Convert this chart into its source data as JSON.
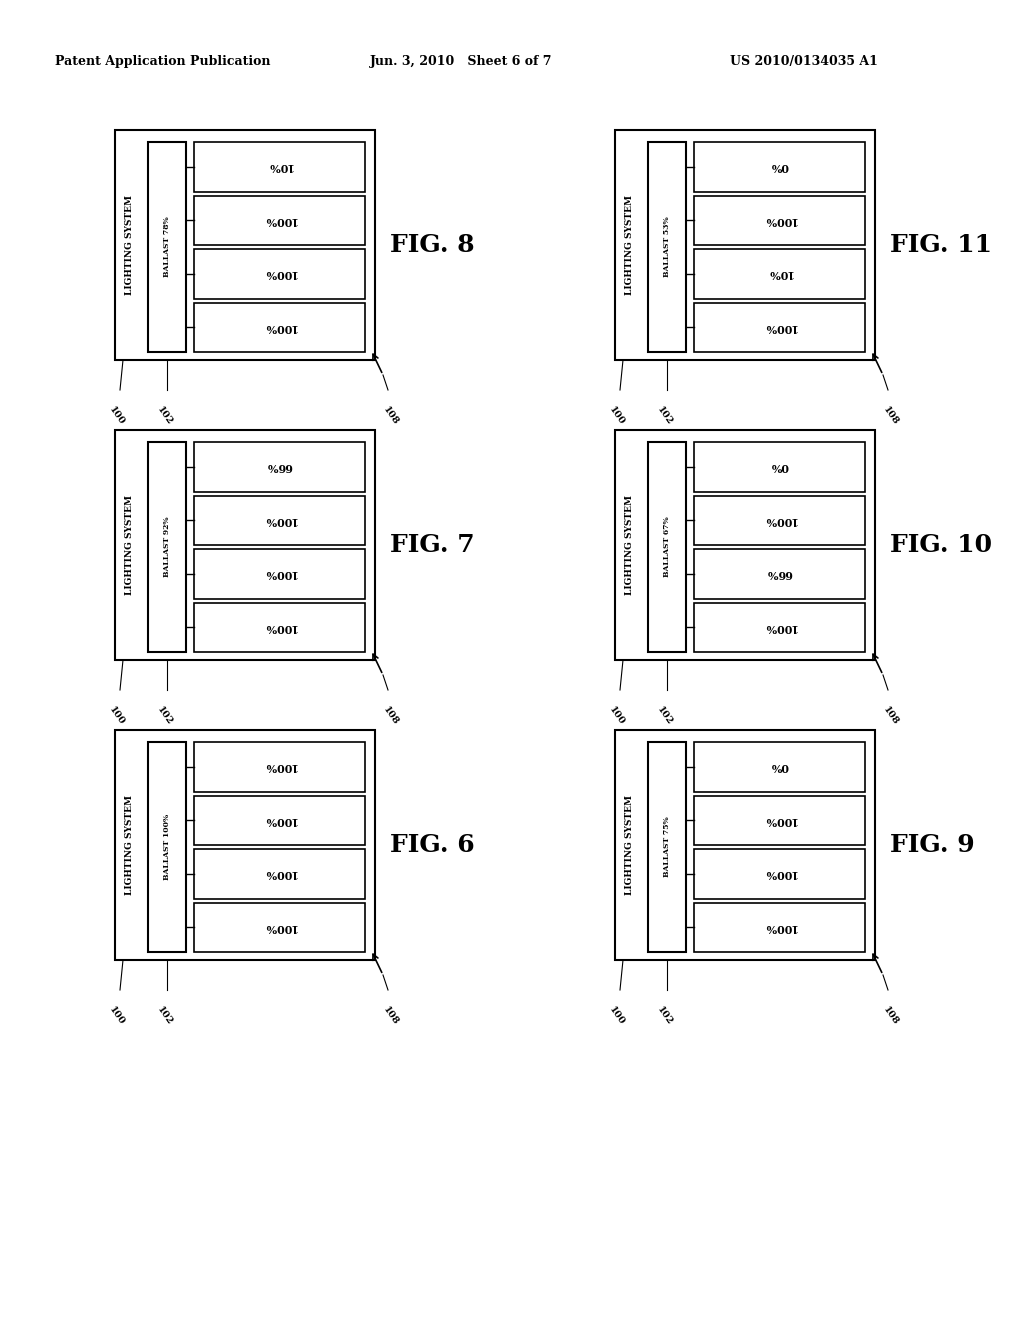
{
  "header_left": "Patent Application Publication",
  "header_mid": "Jun. 3, 2010   Sheet 6 of 7",
  "header_right": "US 2010/0134035 A1",
  "figures": [
    {
      "fig_num": "FIG. 8",
      "ballast_label": "BALLAST 78%",
      "lamp_values": [
        "10%",
        "100%",
        "100%",
        "100%"
      ],
      "grid_col": 0,
      "grid_row": 0
    },
    {
      "fig_num": "FIG. 7",
      "ballast_label": "BALLAST 92%",
      "lamp_values": [
        "66%",
        "100%",
        "100%",
        "100%"
      ],
      "grid_col": 0,
      "grid_row": 1
    },
    {
      "fig_num": "FIG. 6",
      "ballast_label": "BALLAST 100%",
      "lamp_values": [
        "100%",
        "100%",
        "100%",
        "100%"
      ],
      "grid_col": 0,
      "grid_row": 2
    },
    {
      "fig_num": "FIG. 11",
      "ballast_label": "BALLAST 53%",
      "lamp_values": [
        "0%",
        "100%",
        "10%",
        "100%"
      ],
      "grid_col": 1,
      "grid_row": 0
    },
    {
      "fig_num": "FIG. 10",
      "ballast_label": "BALLAST 67%",
      "lamp_values": [
        "0%",
        "100%",
        "66%",
        "100%"
      ],
      "grid_col": 1,
      "grid_row": 1
    },
    {
      "fig_num": "FIG. 9",
      "ballast_label": "BALLAST 75%",
      "lamp_values": [
        "0%",
        "100%",
        "100%",
        "100%"
      ],
      "grid_col": 1,
      "grid_row": 2
    }
  ],
  "background_color": "#ffffff"
}
